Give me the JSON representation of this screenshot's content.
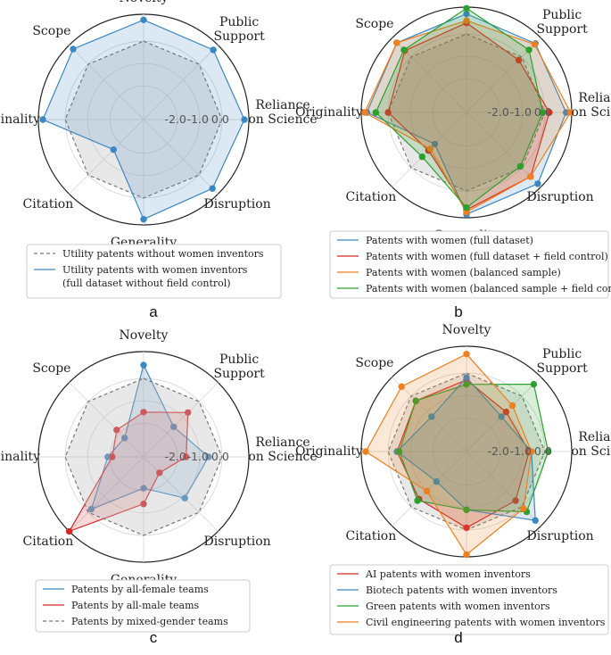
{
  "colors": {
    "blue": "#3b87c4",
    "red": "#d62728",
    "orange": "#f07f1d",
    "green": "#2ca02c",
    "gray": "#777777",
    "gray_fill": "#bdbdbd"
  },
  "chart_data": [
    {
      "type": "radar",
      "panel": "a",
      "axes": [
        "Novelty",
        "Public\nSupport",
        "Reliance\non Science",
        "Disruption",
        "Generality",
        "Citation",
        "Originality",
        "Scope"
      ],
      "r_ticks": [
        "-2.0",
        "-1.0",
        "0.0"
      ],
      "rlim": [
        -3.5,
        1.2
      ],
      "legend": {
        "position": "below"
      },
      "series": [
        {
          "name": "Utility patents without women inventors",
          "values": [
            0,
            0,
            0,
            0,
            0,
            0,
            0,
            0
          ],
          "color": "gray",
          "style": "dashed",
          "marker": "none",
          "fill": "gray_fill"
        },
        {
          "name": "Utility patents with women inventors\n(full dataset without field control)",
          "values": [
            0.95,
            0.9,
            1.0,
            0.85,
            0.95,
            -1.6,
            1.0,
            0.95
          ],
          "color": "blue",
          "style": "solid",
          "marker": "dot",
          "fill": "blue"
        }
      ]
    },
    {
      "type": "radar",
      "panel": "b",
      "axes": [
        "Novelty",
        "Public\nSupport",
        "Reliance\non Science",
        "Disruption",
        "Generality",
        "Citation",
        "Originality",
        "Scope"
      ],
      "r_ticks": [
        "-2.0",
        "-1.0",
        "0.0"
      ],
      "rlim": [
        -3.5,
        1.2
      ],
      "legend": {
        "position": "below"
      },
      "series": [
        {
          "name": "Gray reference",
          "values": [
            0,
            0,
            0,
            0,
            0,
            0,
            0,
            0
          ],
          "color": "gray",
          "style": "dashed",
          "marker": "none",
          "fill": "gray_fill",
          "in_legend": false
        },
        {
          "name": "Patents with women (full dataset)",
          "values": [
            0.9,
            0.85,
            0.95,
            1.0,
            1.05,
            -1.5,
            0.95,
            0.9
          ],
          "color": "blue",
          "style": "solid",
          "marker": "dot",
          "fill": "blue"
        },
        {
          "name": "Patents with women (full dataset + field control)",
          "values": [
            0.5,
            -0.2,
            0.2,
            0.55,
            0.85,
            -1.1,
            0.0,
            0.4
          ],
          "color": "red",
          "style": "solid",
          "marker": "dot",
          "fill": "red"
        },
        {
          "name": "Patents with women (balanced sample)",
          "values": [
            0.6,
            0.8,
            1.15,
            0.55,
            0.95,
            -1.2,
            1.05,
            0.9
          ],
          "color": "orange",
          "style": "solid",
          "marker": "dot",
          "fill": "orange"
        },
        {
          "name": "Patents with women (balanced sample + field control)",
          "values": [
            1.15,
            0.45,
            -0.1,
            -0.1,
            0.75,
            -0.7,
            0.55,
            0.45
          ],
          "color": "green",
          "style": "solid",
          "marker": "dot",
          "fill": "green"
        }
      ]
    },
    {
      "type": "radar",
      "panel": "c",
      "axes": [
        "Novelty",
        "Public\nSupport",
        "Reliance\non Science",
        "Disruption",
        "Generality",
        "Citation",
        "Originality",
        "Scope"
      ],
      "r_ticks": [
        "-2.0",
        "-1.0",
        "0.0"
      ],
      "rlim": [
        -3.5,
        1.2
      ],
      "legend": {
        "position": "below"
      },
      "series": [
        {
          "name": "Patents by all-female teams",
          "values": [
            0.6,
            -1.6,
            -0.6,
            -0.9,
            -2.1,
            -0.2,
            -1.9,
            -2.3
          ],
          "color": "blue",
          "style": "solid",
          "marker": "dot",
          "fill": "blue"
        },
        {
          "name": "Patents by all-male teams",
          "values": [
            -1.5,
            -0.7,
            -1.6,
            -2.5,
            -1.4,
            1.2,
            -2.1,
            -1.8
          ],
          "color": "red",
          "style": "solid",
          "marker": "dot",
          "fill": "red"
        },
        {
          "name": "Patents by mixed-gender teams",
          "values": [
            0,
            0,
            0,
            0,
            0,
            0,
            0,
            0
          ],
          "color": "gray",
          "style": "dashed",
          "marker": "none",
          "fill": "gray_fill"
        }
      ]
    },
    {
      "type": "radar",
      "panel": "d",
      "axes": [
        "Novelty",
        "Public\nSupport",
        "Reliance\non Science",
        "Disruption",
        "Generality",
        "Citation",
        "Originality",
        "Scope"
      ],
      "r_ticks": [
        "-2.0",
        "-1.0",
        "0.0"
      ],
      "rlim": [
        -3.5,
        1.2
      ],
      "legend": {
        "position": "below"
      },
      "series": [
        {
          "name": "Gray reference",
          "values": [
            0,
            0,
            0,
            0,
            0,
            0,
            0,
            0
          ],
          "color": "gray",
          "style": "dashed",
          "marker": "none",
          "fill": "gray_fill",
          "in_legend": false
        },
        {
          "name": "AI patents with women inventors",
          "values": [
            -0.3,
            -1.0,
            -0.7,
            -0.4,
            -0.1,
            -0.5,
            -0.4,
            -0.3
          ],
          "color": "red",
          "style": "solid",
          "marker": "dot",
          "fill": "red"
        },
        {
          "name": "Biotech patents with women inventors",
          "values": [
            -0.2,
            -1.3,
            -0.6,
            0.85,
            -0.9,
            -1.6,
            -0.4,
            -1.3
          ],
          "color": "blue",
          "style": "solid",
          "marker": "dot",
          "fill": "blue"
        },
        {
          "name": "Green patents with women inventors",
          "values": [
            -0.5,
            0.75,
            0.15,
            0.3,
            -0.9,
            -0.4,
            -0.5,
            -0.3
          ],
          "color": "green",
          "style": "solid",
          "marker": "dot",
          "fill": "green"
        },
        {
          "name": "Civil engineering patents with women inventors",
          "values": [
            0.85,
            -0.6,
            -0.6,
            0.1,
            1.1,
            -1.0,
            1.0,
            0.6
          ],
          "color": "orange",
          "style": "solid",
          "marker": "dot",
          "fill": "orange"
        }
      ]
    }
  ]
}
